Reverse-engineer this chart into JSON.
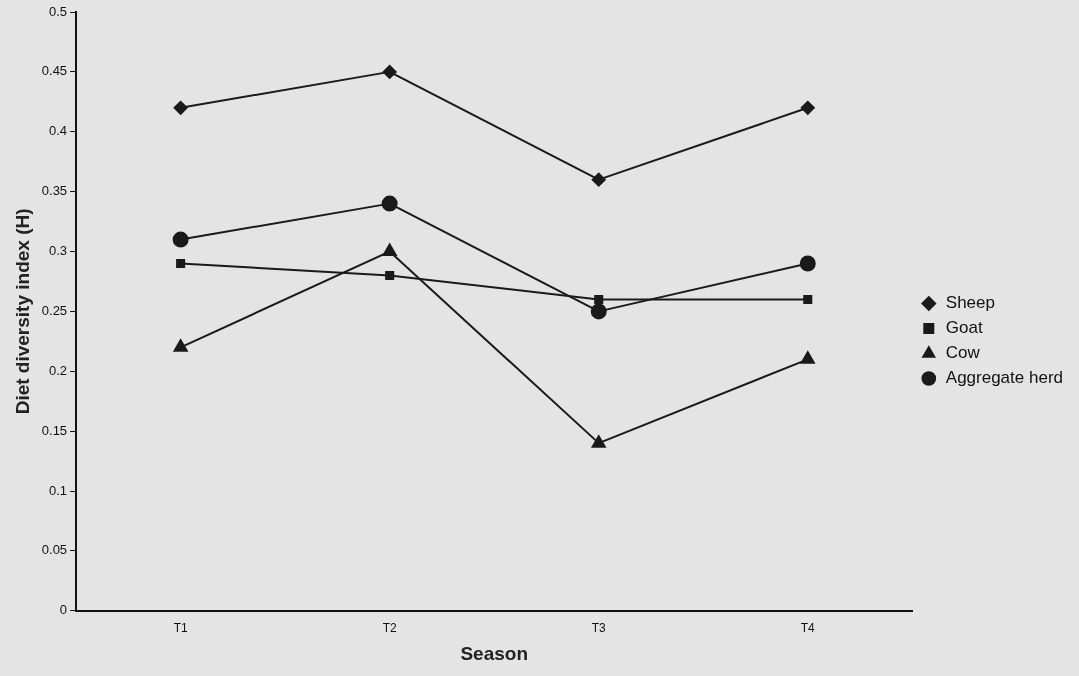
{
  "chart_data": {
    "type": "line",
    "xlabel": "Season",
    "ylabel": "Diet diversity index (H)",
    "categories": [
      "T1",
      "T2",
      "T3",
      "T4"
    ],
    "series": [
      {
        "name": "Sheep",
        "color": "#1a1a1a",
        "marker": "diamond",
        "values": [
          0.42,
          0.45,
          0.36,
          0.42
        ]
      },
      {
        "name": "Goat",
        "color": "#1a1a1a",
        "marker": "square",
        "values": [
          0.29,
          0.28,
          0.26,
          0.26
        ]
      },
      {
        "name": "Cow",
        "color": "#1a1a1a",
        "marker": "triangle",
        "values": [
          0.22,
          0.3,
          0.14,
          0.21
        ]
      },
      {
        "name": "Aggregate herd",
        "color": "#1a1a1a",
        "marker": "circle",
        "values": [
          0.31,
          0.34,
          0.25,
          0.29
        ]
      }
    ],
    "ylim": [
      0,
      0.5
    ],
    "yticks": [
      0,
      0.05,
      0.1,
      0.15,
      0.2,
      0.25,
      0.3,
      0.35,
      0.4,
      0.45,
      0.5
    ],
    "grid": false,
    "legend": "right",
    "line_style": "solid"
  }
}
